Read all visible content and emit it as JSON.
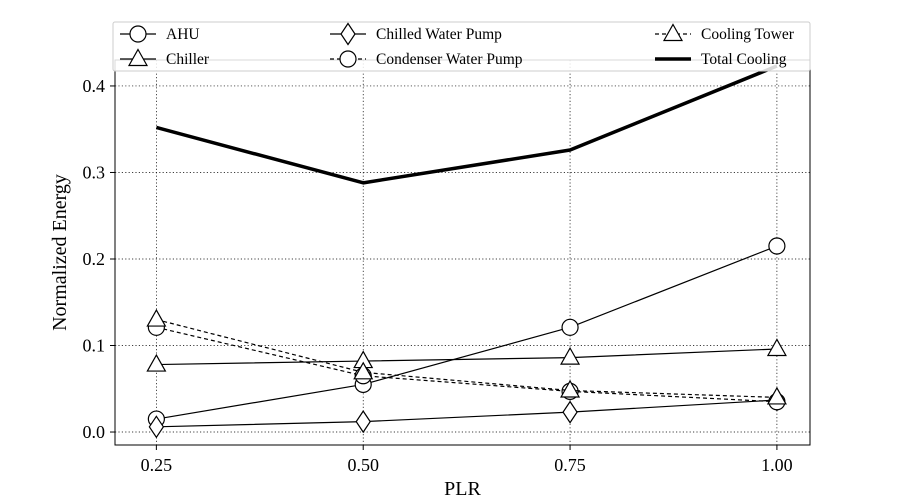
{
  "chart_data": {
    "type": "line",
    "title": "",
    "xlabel": "PLR",
    "ylabel": "Normalized Energy",
    "x": [
      0.25,
      0.5,
      0.75,
      1.0
    ],
    "xticks": [
      "0.25",
      "0.50",
      "0.75",
      "1.00"
    ],
    "yticks": [
      "0.0",
      "0.1",
      "0.2",
      "0.3",
      "0.4"
    ],
    "xlim": [
      0.2,
      1.04
    ],
    "ylim": [
      -0.015,
      0.43
    ],
    "grid": true,
    "legend_position": "top",
    "series": [
      {
        "name": "AHU",
        "marker": "circle",
        "dashed": false,
        "bold": false,
        "values": [
          0.015,
          0.055,
          0.121,
          0.215
        ]
      },
      {
        "name": "Chiller",
        "marker": "triangle",
        "dashed": false,
        "bold": false,
        "values": [
          0.078,
          0.082,
          0.086,
          0.096
        ]
      },
      {
        "name": "Chilled Water Pump",
        "marker": "diamond",
        "dashed": false,
        "bold": false,
        "values": [
          0.006,
          0.012,
          0.023,
          0.037
        ]
      },
      {
        "name": "Condenser Water Pump",
        "marker": "circle",
        "dashed": true,
        "bold": false,
        "values": [
          0.121,
          0.065,
          0.047,
          0.035
        ]
      },
      {
        "name": "Cooling Tower",
        "marker": "triangle",
        "dashed": true,
        "bold": false,
        "values": [
          0.13,
          0.069,
          0.048,
          0.04
        ]
      },
      {
        "name": "Total Cooling",
        "marker": "none",
        "dashed": false,
        "bold": true,
        "values": [
          0.352,
          0.288,
          0.326,
          0.423
        ]
      }
    ]
  }
}
